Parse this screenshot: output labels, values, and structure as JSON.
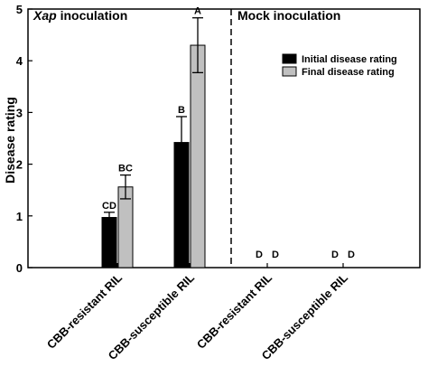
{
  "chart_data": {
    "type": "bar",
    "ylabel": "Disease rating",
    "ylim": [
      0,
      5
    ],
    "yticks": [
      "0",
      "1",
      "2",
      "3",
      "4",
      "5"
    ],
    "grid": false,
    "legend_position": "top-right",
    "panels": [
      {
        "label_italic": "Xap",
        "label_rest": " inoculation"
      },
      {
        "label_italic": "",
        "label_rest": "Mock inoculation"
      }
    ],
    "categories": [
      "CBB-resistant RIL",
      "CBB-susceptible RIL",
      "CBB-resistant RIL",
      "CBB-susceptible RIL"
    ],
    "series": [
      {
        "name": "Initial disease rating",
        "color": "#000000",
        "values": [
          0.97,
          2.42,
          0,
          0
        ],
        "errors": [
          0.1,
          0.5,
          null,
          null
        ],
        "letters": [
          "CD",
          "B",
          "D",
          "D"
        ]
      },
      {
        "name": "Final disease rating",
        "color": "#c0c0c0",
        "values": [
          1.56,
          4.3,
          0,
          0
        ],
        "errors": [
          0.23,
          0.53,
          null,
          null
        ],
        "letters": [
          "BC",
          "A",
          "D",
          "D"
        ]
      }
    ]
  }
}
